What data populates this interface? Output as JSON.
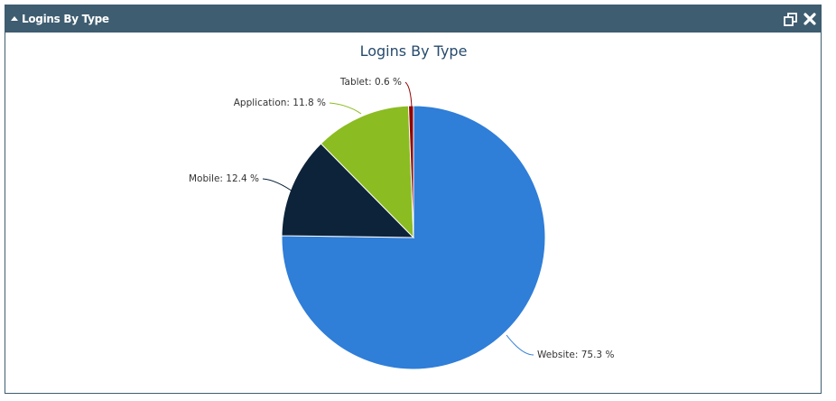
{
  "widget": {
    "title": "Logins By Type"
  },
  "colors": {
    "header_bg": "#3e5d70",
    "Website": "#2f7ed8",
    "Mobile": "#0d233a",
    "Application": "#8bbc21",
    "Tablet": "#910000"
  },
  "icons": {
    "collapse": "caret-up-icon",
    "restore": "restore-window-icon",
    "close": "close-icon"
  },
  "chart_data": {
    "type": "pie",
    "title": "Logins By Type",
    "unit": "%",
    "slices": [
      {
        "name": "Website",
        "value": 75.3,
        "label": "Website: 75.3 %"
      },
      {
        "name": "Mobile",
        "value": 12.4,
        "label": "Mobile: 12.4 %"
      },
      {
        "name": "Application",
        "value": 11.8,
        "label": "Application: 11.8 %"
      },
      {
        "name": "Tablet",
        "value": 0.6,
        "label": "Tablet: 0.6 %"
      }
    ]
  }
}
